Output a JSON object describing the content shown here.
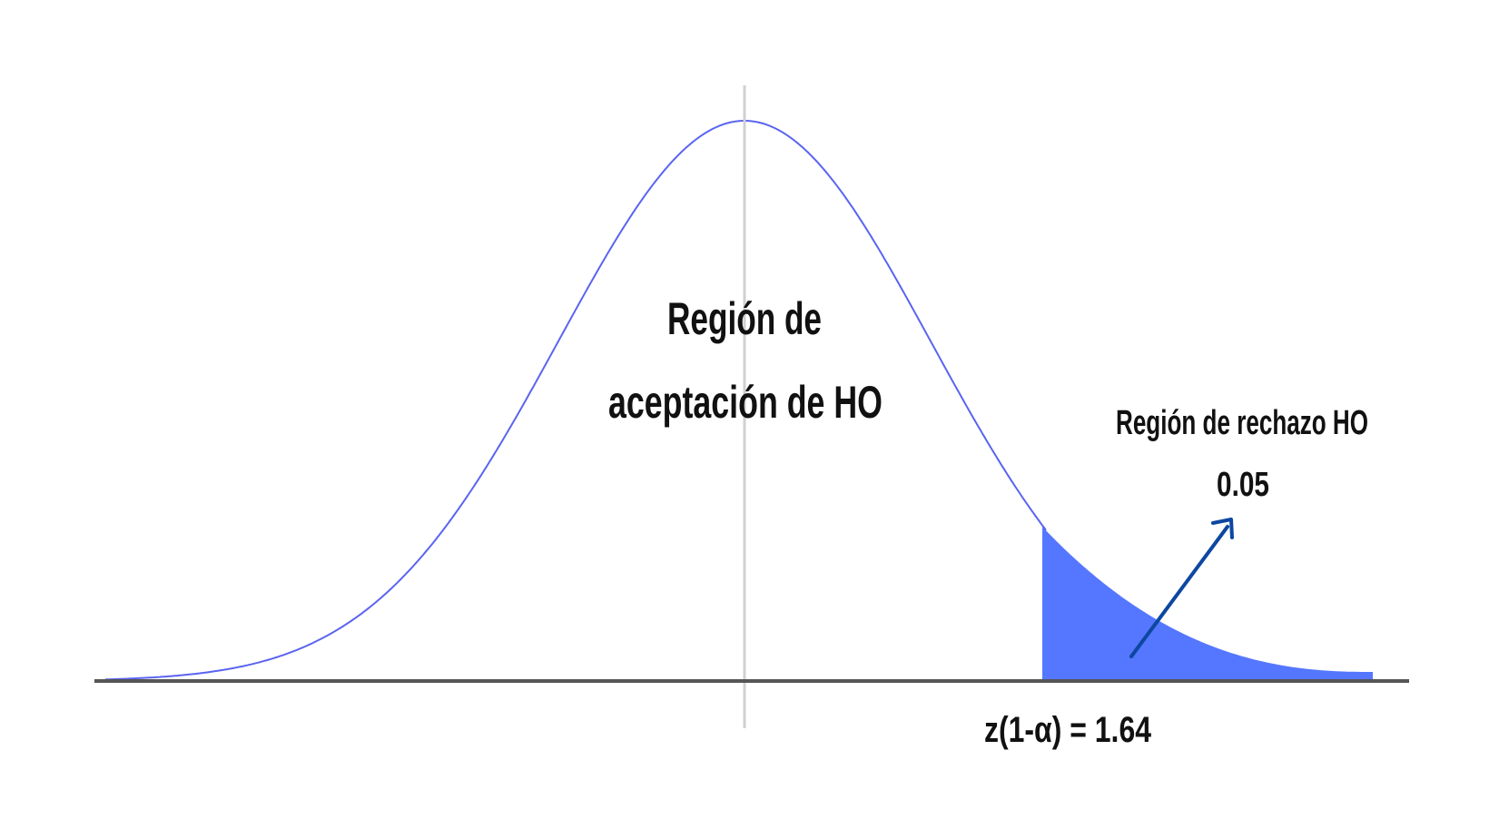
{
  "diagram": {
    "type": "normal-distribution-one-tailed-test",
    "acceptance_region": {
      "line1": "Región de",
      "line2": "aceptación de HO"
    },
    "rejection_region": {
      "label": "Región de rechazo HO",
      "alpha": "0.05"
    },
    "critical_value_label": "z(1-α) = 1.64",
    "colors": {
      "curve": "#5a64f0",
      "shaded_tail": "#5577ff",
      "arrow": "#0d47a1",
      "axis": "#555555",
      "center_line": "#d0d0d0",
      "text": "#111111"
    }
  }
}
